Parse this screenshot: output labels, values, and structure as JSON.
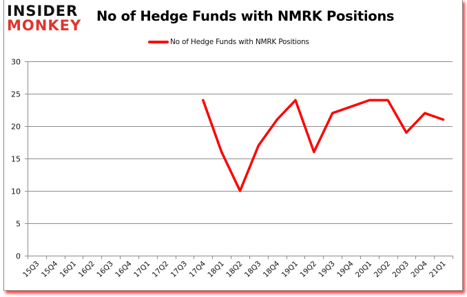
{
  "logo": {
    "line1": "INSIDER",
    "line2": "MONKEY"
  },
  "title": "No of Hedge Funds with NMRK Positions",
  "legend": {
    "label": "No of Hedge Funds with NMRK Positions",
    "color": "#ff0000"
  },
  "colors": {
    "line": "#ff0000",
    "grid": "#8c8c8c",
    "axis": "#8c8c8c",
    "frame_shadow": "#ff0000",
    "logo_top": "#111111",
    "logo_bottom": "#e0342b"
  },
  "chart_data": {
    "type": "line",
    "title": "No of Hedge Funds with NMRK Positions",
    "xlabel": "",
    "ylabel": "",
    "ylim": [
      0,
      30
    ],
    "yticks": [
      0,
      5,
      10,
      15,
      20,
      25,
      30
    ],
    "grid": true,
    "legend_position": "top",
    "categories": [
      "15Q3",
      "15Q4",
      "16Q1",
      "16Q2",
      "16Q3",
      "16Q4",
      "17Q1",
      "17Q2",
      "17Q3",
      "17Q4",
      "18Q1",
      "18Q2",
      "18Q3",
      "18Q4",
      "19Q1",
      "19Q2",
      "19Q3",
      "19Q4",
      "20Q1",
      "20Q2",
      "20Q3",
      "20Q4",
      "21Q1"
    ],
    "series": [
      {
        "name": "No of Hedge Funds with NMRK Positions",
        "values": [
          null,
          null,
          null,
          null,
          null,
          null,
          null,
          null,
          null,
          24,
          16,
          10,
          17,
          21,
          24,
          16,
          22,
          23,
          24,
          24,
          19,
          22,
          21
        ]
      }
    ]
  }
}
